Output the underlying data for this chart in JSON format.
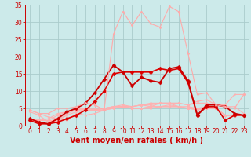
{
  "title": "",
  "xlabel": "Vent moyen/en rafales ( km/h )",
  "ylabel": "",
  "bg_color": "#cceaea",
  "grid_color": "#aacccc",
  "x": [
    0,
    1,
    2,
    3,
    4,
    5,
    6,
    7,
    8,
    9,
    10,
    11,
    12,
    13,
    14,
    15,
    16,
    17,
    18,
    19,
    20,
    21,
    22,
    23
  ],
  "series": [
    {
      "y": [
        4.0,
        3.0,
        1.0,
        2.0,
        4.0,
        5.0,
        5.0,
        4.5,
        4.5,
        5.0,
        5.5,
        5.5,
        6.0,
        6.5,
        6.5,
        6.5,
        6.5,
        6.0,
        7.0,
        7.5,
        6.0,
        6.0,
        9.0,
        9.0
      ],
      "color": "#ffb0b0",
      "lw": 0.8,
      "marker": "D",
      "ms": 1.5
    },
    {
      "y": [
        1.5,
        1.0,
        0.5,
        1.5,
        3.5,
        4.5,
        5.0,
        5.0,
        5.0,
        5.5,
        6.0,
        5.5,
        6.0,
        6.0,
        6.5,
        6.5,
        6.5,
        6.0,
        6.5,
        6.5,
        6.0,
        5.5,
        5.5,
        3.5
      ],
      "color": "#ffb0b0",
      "lw": 0.8,
      "marker": "D",
      "ms": 1.5
    },
    {
      "y": [
        2.0,
        1.5,
        1.5,
        3.0,
        4.0,
        4.5,
        4.5,
        4.5,
        5.0,
        5.5,
        5.5,
        5.5,
        6.0,
        5.5,
        6.5,
        6.5,
        5.5,
        5.5,
        5.0,
        5.5,
        5.0,
        3.0,
        3.0,
        3.0
      ],
      "color": "#ffb0b0",
      "lw": 0.8,
      "marker": "D",
      "ms": 1.5
    },
    {
      "y": [
        2.0,
        1.5,
        1.5,
        1.5,
        3.0,
        4.0,
        4.5,
        4.5,
        4.5,
        5.0,
        5.5,
        5.0,
        5.0,
        5.5,
        5.5,
        6.0,
        5.5,
        5.0,
        5.0,
        5.0,
        5.0,
        3.0,
        3.0,
        3.0
      ],
      "color": "#ffb0b0",
      "lw": 0.8,
      "marker": "D",
      "ms": 1.5
    },
    {
      "y": [
        1.5,
        1.5,
        2.0,
        3.5,
        4.0,
        5.0,
        4.5,
        4.5,
        5.0,
        5.5,
        5.5,
        5.0,
        5.0,
        5.0,
        5.5,
        5.5,
        5.5,
        5.0,
        4.5,
        5.0,
        5.0,
        3.0,
        3.0,
        3.0
      ],
      "color": "#ffb0b0",
      "lw": 0.8,
      "marker": "D",
      "ms": 1.5
    },
    {
      "y": [
        4.5,
        3.5,
        2.5,
        2.0,
        1.5,
        3.5,
        3.0,
        3.5,
        4.5,
        5.5,
        5.5,
        5.0,
        5.0,
        5.5,
        5.5,
        5.5,
        5.5,
        5.0,
        5.0,
        5.0,
        5.0,
        3.0,
        3.0,
        3.0
      ],
      "color": "#ffb0b0",
      "lw": 0.8,
      "marker": "D",
      "ms": 1.5
    },
    {
      "y": [
        1.5,
        0.5,
        0.5,
        1.0,
        2.0,
        3.0,
        4.5,
        7.0,
        10.0,
        15.0,
        15.5,
        15.5,
        15.5,
        15.5,
        16.5,
        16.0,
        16.5,
        12.5,
        3.0,
        5.5,
        5.5,
        1.5,
        3.0,
        3.0
      ],
      "color": "#dd0000",
      "lw": 1.2,
      "marker": "D",
      "ms": 2.5
    },
    {
      "y": [
        2.0,
        1.0,
        0.5,
        2.0,
        4.0,
        5.0,
        6.5,
        9.5,
        13.5,
        17.5,
        15.5,
        11.5,
        14.0,
        13.0,
        12.5,
        16.5,
        17.0,
        13.0,
        3.0,
        6.0,
        6.0,
        5.5,
        3.5,
        3.0
      ],
      "color": "#cc0000",
      "lw": 1.3,
      "marker": "D",
      "ms": 2.5
    },
    {
      "y": [
        4.5,
        3.5,
        3.5,
        5.0,
        5.0,
        5.5,
        6.5,
        6.0,
        4.5,
        26.5,
        33.0,
        29.0,
        33.0,
        29.5,
        28.5,
        34.5,
        33.0,
        21.0,
        9.0,
        9.5,
        6.0,
        5.5,
        5.0,
        9.0
      ],
      "color": "#ffaaaa",
      "lw": 0.8,
      "marker": "D",
      "ms": 1.5
    }
  ],
  "xlim": [
    -0.5,
    23.5
  ],
  "ylim": [
    0,
    35
  ],
  "yticks": [
    0,
    5,
    10,
    15,
    20,
    25,
    30,
    35
  ],
  "xticks": [
    0,
    1,
    2,
    3,
    4,
    5,
    6,
    7,
    8,
    9,
    10,
    11,
    12,
    13,
    14,
    15,
    16,
    17,
    18,
    19,
    20,
    21,
    22,
    23
  ],
  "tick_color": "#cc0000",
  "label_color": "#cc0000",
  "xlabel_fontsize": 7,
  "tick_fontsize": 5.5
}
